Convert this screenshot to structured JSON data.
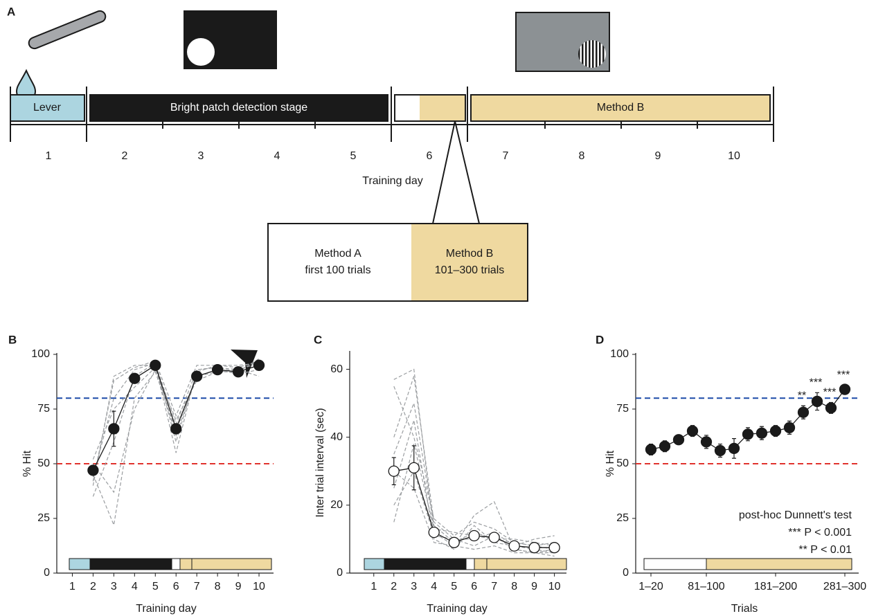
{
  "panel_a": {
    "label": "A",
    "stages": [
      "Lever",
      "Bright patch detection stage",
      "Method B"
    ],
    "days": [
      1,
      2,
      3,
      4,
      5,
      6,
      7,
      8,
      9,
      10
    ],
    "xlabel": "Training day",
    "inset": {
      "method_a": [
        "Method A",
        "first 100 trials"
      ],
      "method_b": [
        "Method B",
        "101–300 trials"
      ]
    }
  },
  "chart_data": [
    {
      "type": "line",
      "panel_label": "B",
      "xlabel": "Training day",
      "ylabel": "% Hit",
      "x": [
        1,
        2,
        3,
        4,
        5,
        6,
        7,
        8,
        9,
        10
      ],
      "xlim": [
        0.25,
        10.7
      ],
      "xticks": [
        1,
        2,
        3,
        4,
        5,
        6,
        7,
        8,
        9,
        10
      ],
      "ylim": [
        0,
        100
      ],
      "yticks": [
        0,
        25,
        50,
        75,
        100
      ],
      "values": [
        null,
        47,
        66,
        89,
        95,
        66,
        90,
        93,
        92,
        95
      ],
      "errors": [
        null,
        1.5,
        8,
        2,
        1,
        2,
        2,
        1.5,
        1.5,
        1
      ],
      "marker_fill": "#1a1a1a",
      "individuals": [
        [
          null,
          44,
          80,
          93,
          96,
          60,
          92,
          95,
          94,
          97
        ],
        [
          null,
          40,
          90,
          95,
          95,
          55,
          93,
          94,
          93,
          96
        ],
        [
          null,
          50,
          37,
          75,
          93,
          70,
          88,
          92,
          92,
          95
        ],
        [
          null,
          45,
          22,
          80,
          92,
          65,
          90,
          93,
          91,
          93
        ],
        [
          null,
          35,
          60,
          90,
          96,
          68,
          93,
          94,
          92,
          98
        ],
        [
          null,
          42,
          88,
          94,
          97,
          72,
          95,
          95,
          95,
          96
        ],
        [
          null,
          52,
          75,
          85,
          94,
          63,
          90,
          92,
          93,
          90
        ]
      ],
      "reference_lines": [
        {
          "value": 80,
          "color": "#1b4aa8"
        },
        {
          "value": 50,
          "color": "#e0312b"
        }
      ]
    },
    {
      "type": "line",
      "panel_label": "C",
      "xlabel": "Training day",
      "ylabel": "Inter trial interval (sec)",
      "x": [
        1,
        2,
        3,
        4,
        5,
        6,
        7,
        8,
        9,
        10
      ],
      "xlim": [
        -0.2,
        10.6
      ],
      "xticks": [
        1,
        2,
        3,
        4,
        5,
        6,
        7,
        8,
        9,
        10
      ],
      "ylim": [
        0,
        65
      ],
      "yticks": [
        0,
        20,
        40,
        60
      ],
      "values": [
        null,
        30,
        31,
        12,
        9,
        11,
        10.5,
        8,
        7.5,
        7.5
      ],
      "errors": [
        null,
        4,
        6.5,
        1,
        1,
        1,
        1,
        1,
        1,
        1
      ],
      "marker_fill": "#ffffff",
      "individuals": [
        [
          null,
          57,
          60,
          12,
          8,
          17,
          21,
          7,
          6,
          6
        ],
        [
          null,
          40,
          58,
          15,
          10,
          10,
          12,
          8,
          10,
          11
        ],
        [
          null,
          35,
          50,
          14,
          9,
          12,
          10,
          9,
          8,
          7
        ],
        [
          null,
          25,
          45,
          10,
          7,
          14,
          9,
          8,
          7,
          6
        ],
        [
          null,
          20,
          30,
          11,
          10,
          8,
          11,
          7,
          6,
          7
        ],
        [
          null,
          15,
          38,
          13,
          12,
          11,
          10,
          10,
          9,
          8
        ],
        [
          null,
          30,
          25,
          9,
          8,
          7,
          8,
          6,
          6,
          5
        ],
        [
          null,
          55,
          40,
          16,
          11,
          15,
          13,
          9,
          8,
          9
        ]
      ],
      "reference_lines": []
    },
    {
      "type": "line",
      "panel_label": "D",
      "xlabel": "Trials",
      "ylabel": "% Hit",
      "categories": [
        "1–20",
        null,
        null,
        null,
        "81–100",
        null,
        null,
        null,
        null,
        "181–200",
        null,
        null,
        null,
        null,
        "281–300"
      ],
      "ylim": [
        0,
        100
      ],
      "yticks": [
        0,
        25,
        50,
        75,
        100
      ],
      "values": [
        56.5,
        58,
        61,
        65,
        60,
        56,
        57,
        63.5,
        64,
        65,
        66.5,
        73.5,
        78.5,
        75.5,
        84
      ],
      "errors": [
        2.5,
        2.5,
        2,
        2.5,
        3,
        3,
        4.5,
        3,
        3,
        2.5,
        3,
        3,
        4,
        2.5,
        2
      ],
      "significance": [
        null,
        null,
        null,
        null,
        null,
        null,
        null,
        null,
        null,
        null,
        null,
        "**",
        "***",
        "***",
        "***"
      ],
      "marker_fill": "#1a1a1a",
      "individuals": [],
      "reference_lines": [
        {
          "value": 80,
          "color": "#1b4aa8"
        },
        {
          "value": 50,
          "color": "#e0312b"
        }
      ],
      "annotations": [
        "post-hoc Dunnett's test",
        "*** P < 0.001",
        "** P < 0.01"
      ]
    }
  ]
}
